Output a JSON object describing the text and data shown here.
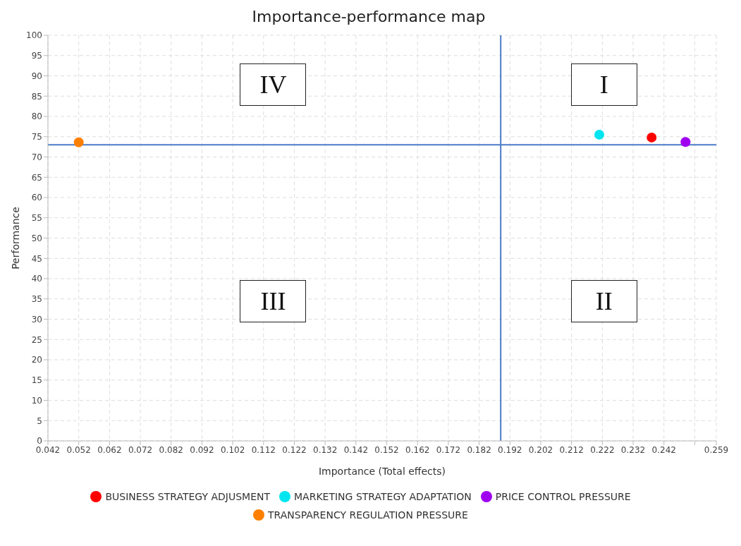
{
  "chart_data": {
    "type": "scatter",
    "title": "Importance-performance map",
    "xlabel": "Importance (Total effects)",
    "ylabel": "Performance",
    "xlim": [
      0.042,
      0.259
    ],
    "xticks": [
      0.042,
      0.052,
      0.062,
      0.072,
      0.082,
      0.092,
      0.102,
      0.112,
      0.122,
      0.132,
      0.142,
      0.152,
      0.162,
      0.172,
      0.182,
      0.192,
      0.202,
      0.212,
      0.222,
      0.232,
      0.242,
      {
        "value": 0.252,
        "label": null
      },
      0.259
    ],
    "ylim": [
      0,
      100
    ],
    "yticks": [
      0,
      5,
      10,
      15,
      20,
      25,
      30,
      35,
      40,
      45,
      50,
      55,
      60,
      65,
      70,
      75,
      80,
      85,
      90,
      95,
      100
    ],
    "grid": true,
    "legend": "bottom",
    "marker": "circle",
    "series": [
      {
        "name": "BUSINESS STRATEGY ADJUSMENT",
        "color": "#ff0000",
        "x": [
          0.238
        ],
        "values": [
          74.8
        ]
      },
      {
        "name": "MARKETING STRATEGY ADAPTATION",
        "color": "#00e5f0",
        "x": [
          0.221
        ],
        "values": [
          75.5
        ]
      },
      {
        "name": "PRICE CONTROL PRESSURE",
        "color": "#a000f0",
        "x": [
          0.249
        ],
        "values": [
          73.7
        ]
      },
      {
        "name": "TRANSPARENCY REGULATION PRESSURE",
        "color": "#ff8000",
        "x": [
          0.052
        ],
        "values": [
          73.6
        ]
      }
    ],
    "ref_lines": [
      {
        "axis": "x",
        "value": 0.189,
        "color": "#4a7cc8"
      },
      {
        "axis": "y",
        "value": 73,
        "color": "#4a7cc8"
      }
    ],
    "annotations": [
      "I",
      "II",
      "III",
      "IV"
    ]
  }
}
